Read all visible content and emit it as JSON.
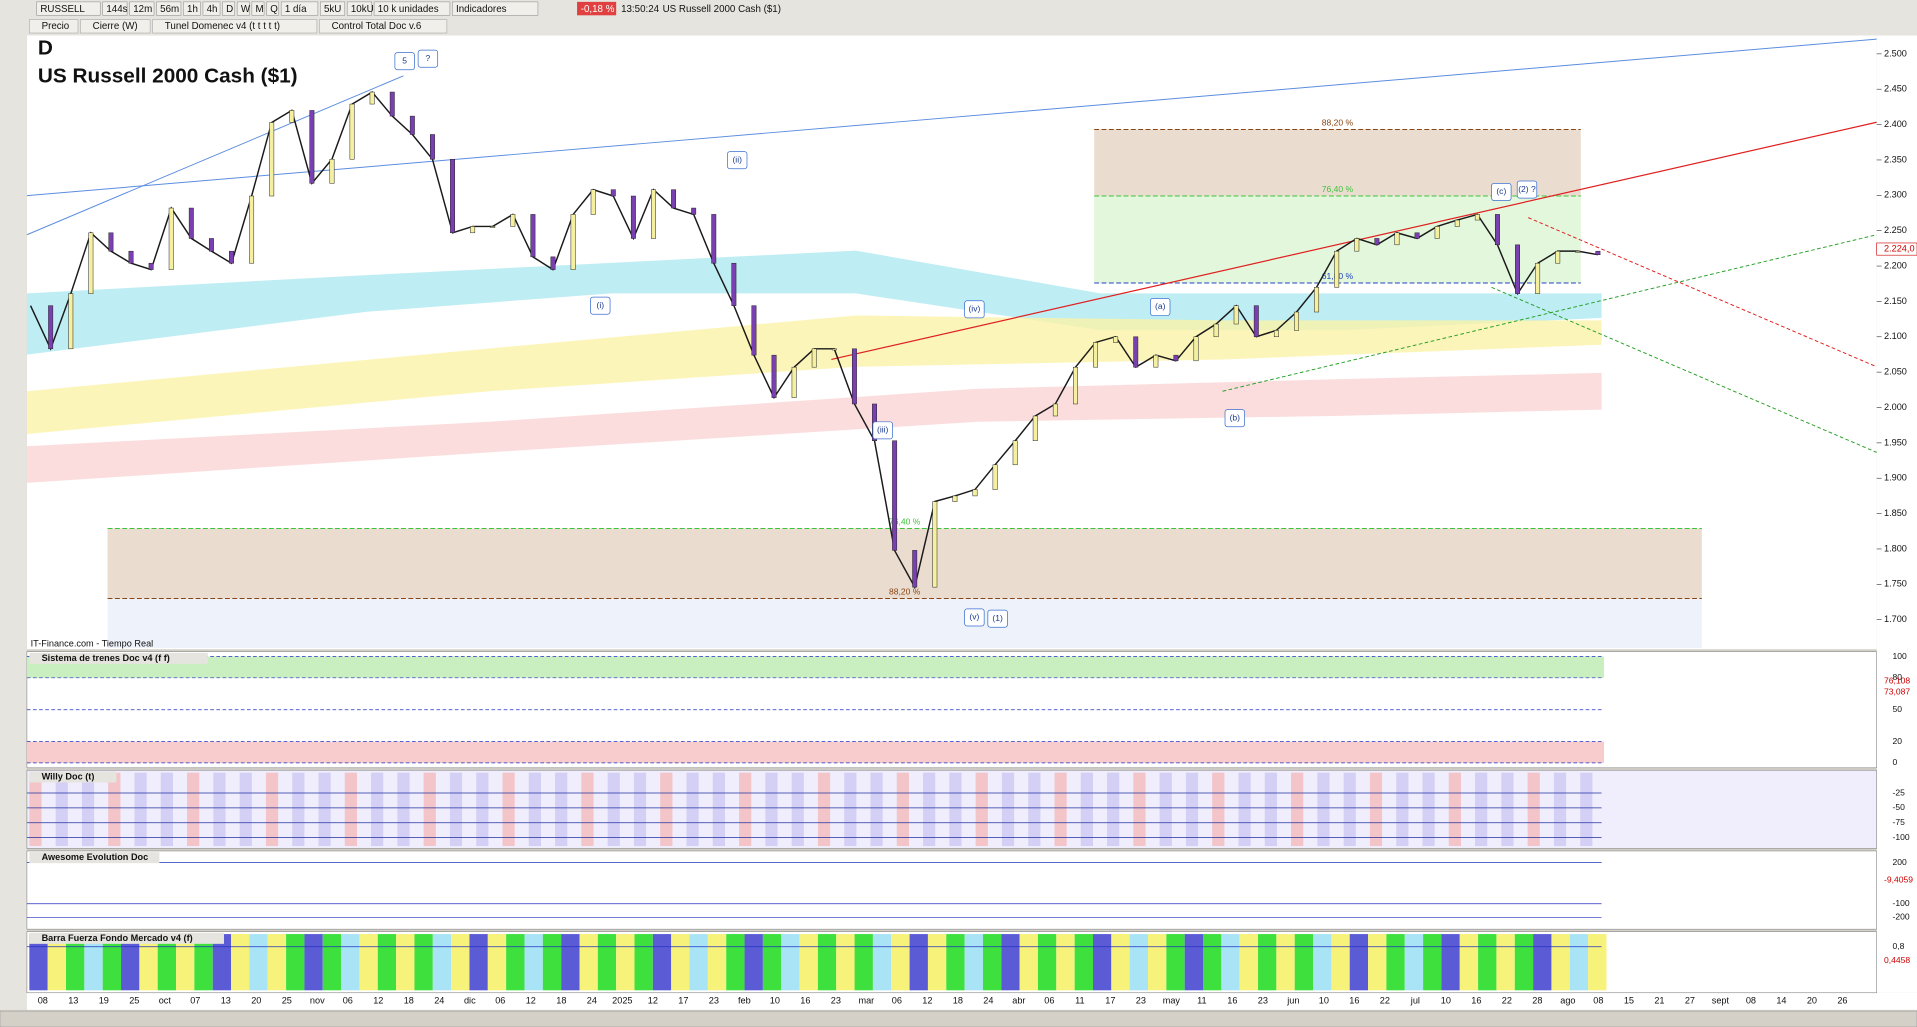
{
  "toolbar": {
    "symbol": "RUSSELL",
    "buttons": [
      "144s",
      "12m",
      "56m",
      "1h",
      "4h",
      "D",
      "W",
      "M",
      "Q"
    ],
    "interval": "1 día",
    "units": [
      "5kU",
      "10kU"
    ],
    "units_select": "10 k unidades",
    "indicators": "Indicadores",
    "change": "-0,18 %",
    "time": "13:50:24",
    "instrument": "US Russell 2000 Cash ($1)"
  },
  "overlays": [
    "Precio",
    "Cierre (W)",
    "Tunel Domenec v4 (t t t t t)",
    "Control Total Doc v.6"
  ],
  "chart_data": {
    "type": "line",
    "period": "D",
    "title": "US Russell 2000 Cash ($1)",
    "source": "IT-Finance.com - Tiempo Real",
    "color": "#1a1a1a",
    "date_labels": [
      "08",
      "13",
      "19",
      "25",
      "oct",
      "07",
      "13",
      "20",
      "25",
      "nov",
      "06",
      "12",
      "18",
      "24",
      "dic",
      "06",
      "12",
      "18",
      "24",
      "2025",
      "12",
      "17",
      "23",
      "feb",
      "10",
      "16",
      "23",
      "mar",
      "06",
      "12",
      "18",
      "24",
      "abr",
      "06",
      "11",
      "17",
      "23",
      "may",
      "11",
      "16",
      "23",
      "jun",
      "10",
      "16",
      "22",
      "jul",
      "10",
      "16",
      "22",
      "28",
      "ago",
      "08",
      "15",
      "21",
      "27",
      "sept",
      "08",
      "14",
      "20",
      "26"
    ],
    "values": [
      2144,
      2083,
      2161,
      2247,
      2221,
      2204,
      2195,
      2282,
      2239,
      2221,
      2204,
      2299,
      2403,
      2420,
      2317,
      2351,
      2429,
      2446,
      2412,
      2386,
      2351,
      2247,
      2256,
      2256,
      2273,
      2213,
      2195,
      2273,
      2308,
      2299,
      2239,
      2308,
      2282,
      2273,
      2204,
      2144,
      2074,
      2014,
      2057,
      2083,
      2083,
      2005,
      1953,
      1798,
      1746,
      1867,
      1875,
      1884,
      1919,
      1953,
      1988,
      2005,
      2057,
      2092,
      2100,
      2057,
      2074,
      2066,
      2100,
      2118,
      2144,
      2100,
      2109,
      2135,
      2170,
      2221,
      2239,
      2230,
      2247,
      2239,
      2256,
      2265,
      2273,
      2230,
      2161,
      2204,
      2221,
      2221,
      2216
    ],
    "ylim": [
      1660,
      2545
    ],
    "yticks": [
      {
        "value": 1700,
        "label": "1.700"
      },
      {
        "value": 1750,
        "label": "1.750"
      },
      {
        "value": 1800,
        "label": "1.800"
      },
      {
        "value": 1850,
        "label": "1.850"
      },
      {
        "value": 1900,
        "label": "1.900"
      },
      {
        "value": 1950,
        "label": "1.950"
      },
      {
        "value": 2000,
        "label": "2.000"
      },
      {
        "value": 2050,
        "label": "2.050"
      },
      {
        "value": 2100,
        "label": "2.100"
      },
      {
        "value": 2150,
        "label": "2.150"
      },
      {
        "value": 2200,
        "label": "2.200"
      },
      {
        "value": 2250,
        "label": "2.250"
      },
      {
        "value": 2300,
        "label": "2.300"
      },
      {
        "value": 2350,
        "label": "2.350"
      },
      {
        "value": 2400,
        "label": "2.400"
      },
      {
        "value": 2450,
        "label": "2.450"
      },
      {
        "value": 2500,
        "label": "2.500"
      }
    ],
    "last_price": {
      "value": 2224,
      "label": "2.224,0"
    },
    "fib_levels": [
      {
        "label": "88,20 %",
        "value": 2393
      },
      {
        "label": "76,40 %",
        "value": 2299
      },
      {
        "label": "61,80 %",
        "value": 2176
      },
      {
        "label": "76,40 %",
        "value": 1829
      },
      {
        "label": "88,20 %",
        "value": 1730
      }
    ],
    "wave_labels": [
      "5",
      "?",
      "(i)",
      "(ii)",
      "(iii)",
      "(iv)",
      "(v)",
      "(1)",
      "(a)",
      "(b)",
      "(c)",
      "(2) ?"
    ]
  },
  "panels": [
    {
      "title": "Sistema de trenes Doc v4 (f f)",
      "ylim": [
        0,
        100
      ],
      "yticks": [
        100,
        80,
        50,
        20,
        0
      ],
      "readouts": [
        "76,108",
        "73,087"
      ]
    },
    {
      "title": "Willy Doc (t)",
      "ylim": [
        -110,
        5
      ],
      "yticks": [
        -25,
        -50,
        -75,
        -100
      ],
      "readouts": []
    },
    {
      "title": "Awesome Evolution Doc",
      "ylim": [
        -250,
        250
      ],
      "yticks": [
        200,
        -100,
        -200
      ],
      "readouts": [
        "-9,4059"
      ]
    },
    {
      "title": "Barra Fuerza Fondo Mercado v4 (f)",
      "ylim": [
        0,
        1
      ],
      "yticks": [
        {
          "value": 0.8,
          "label": "0,8"
        }
      ],
      "readouts": [
        "0,4458"
      ]
    }
  ]
}
